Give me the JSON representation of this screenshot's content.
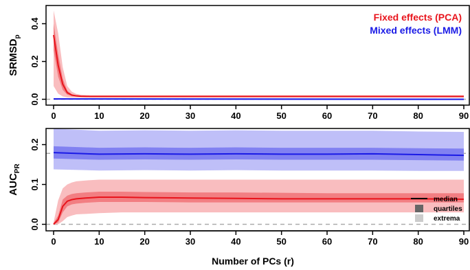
{
  "figure": {
    "xlabel": "Number of PCs (r)"
  },
  "chart_data": [
    {
      "type": "line",
      "ylabel_main": "SRMSD",
      "ylabel_sub": "p",
      "xlim": [
        0,
        90
      ],
      "ylim": [
        -0.02,
        0.52
      ],
      "x_ticks": [
        0,
        10,
        20,
        30,
        40,
        50,
        60,
        70,
        80,
        90
      ],
      "x_tick_labels": [
        "0",
        "10",
        "20",
        "30",
        "40",
        "50",
        "60",
        "70",
        "80",
        "90"
      ],
      "y_ticks": [
        0.0,
        0.2,
        0.4
      ],
      "y_tick_labels": [
        "0.0",
        "0.2",
        "0.4"
      ],
      "reference_line": 0.0,
      "legend_position": "top-right",
      "legend": [
        {
          "label": "Fixed effects (PCA)",
          "color": "#e8141c"
        },
        {
          "label": "Mixed effects (LMM)",
          "color": "#1a1ae6"
        }
      ],
      "series": [
        {
          "name": "Fixed effects (PCA)",
          "color": "#e8141c",
          "x": [
            0,
            1,
            2,
            3,
            4,
            5,
            6,
            8,
            10,
            20,
            30,
            40,
            50,
            60,
            70,
            80,
            90
          ],
          "median": [
            0.34,
            0.18,
            0.08,
            0.035,
            0.022,
            0.018,
            0.016,
            0.015,
            0.015,
            0.015,
            0.015,
            0.015,
            0.015,
            0.015,
            0.015,
            0.015,
            0.015
          ],
          "q1": [
            0.26,
            0.12,
            0.05,
            0.024,
            0.017,
            0.014,
            0.013,
            0.013,
            0.013,
            0.013,
            0.013,
            0.013,
            0.013,
            0.013,
            0.013,
            0.013,
            0.013
          ],
          "q3": [
            0.4,
            0.24,
            0.11,
            0.045,
            0.027,
            0.021,
            0.019,
            0.018,
            0.018,
            0.018,
            0.018,
            0.018,
            0.018,
            0.018,
            0.018,
            0.018,
            0.018
          ],
          "min": [
            0.07,
            0.03,
            0.015,
            0.01,
            0.009,
            0.009,
            0.009,
            0.009,
            0.009,
            0.009,
            0.009,
            0.009,
            0.009,
            0.009,
            0.009,
            0.009,
            0.009
          ],
          "max": [
            0.47,
            0.35,
            0.17,
            0.07,
            0.04,
            0.028,
            0.024,
            0.022,
            0.022,
            0.022,
            0.022,
            0.022,
            0.022,
            0.022,
            0.022,
            0.022,
            0.022
          ]
        },
        {
          "name": "Mixed effects (LMM)",
          "color": "#1a1ae6",
          "x": [
            0,
            90
          ],
          "median": [
            0.002,
            0.0
          ],
          "q1": [
            0.0,
            -0.002
          ],
          "q3": [
            0.004,
            0.002
          ],
          "min": [
            -0.002,
            -0.004
          ],
          "max": [
            0.006,
            0.004
          ]
        }
      ]
    },
    {
      "type": "line",
      "ylabel_main": "AUC",
      "ylabel_sub": "PR",
      "xlim": [
        0,
        90
      ],
      "ylim": [
        -0.005,
        0.245
      ],
      "x_ticks": [
        0,
        10,
        20,
        30,
        40,
        50,
        60,
        70,
        80,
        90
      ],
      "x_tick_labels": [
        "0",
        "10",
        "20",
        "30",
        "40",
        "50",
        "60",
        "70",
        "80",
        "90"
      ],
      "y_ticks": [
        0.0,
        0.1,
        0.2
      ],
      "y_tick_labels": [
        "0.0",
        "0.1",
        "0.2"
      ],
      "reference_lines": [
        0.0,
        0.178
      ],
      "legend_position": "bottom-right",
      "legend": [
        {
          "label": "median",
          "swatch": "line"
        },
        {
          "label": "quartiles",
          "swatch": "dark-box"
        },
        {
          "label": "extrema",
          "swatch": "light-box"
        }
      ],
      "series": [
        {
          "name": "Fixed effects (PCA)",
          "color": "#e8141c",
          "x": [
            0,
            1,
            2,
            3,
            4,
            5,
            7,
            10,
            15,
            20,
            30,
            40,
            50,
            60,
            70,
            80,
            90
          ],
          "median": [
            0.0,
            0.012,
            0.045,
            0.058,
            0.062,
            0.064,
            0.066,
            0.068,
            0.068,
            0.067,
            0.066,
            0.065,
            0.064,
            0.064,
            0.064,
            0.064,
            0.063
          ],
          "q1": [
            0.0,
            0.004,
            0.03,
            0.045,
            0.05,
            0.052,
            0.054,
            0.056,
            0.056,
            0.056,
            0.055,
            0.055,
            0.055,
            0.055,
            0.055,
            0.055,
            0.055
          ],
          "q3": [
            0.003,
            0.022,
            0.062,
            0.072,
            0.076,
            0.078,
            0.08,
            0.082,
            0.082,
            0.081,
            0.08,
            0.08,
            0.079,
            0.078,
            0.078,
            0.078,
            0.078
          ],
          "min": [
            0.0,
            0.0,
            0.008,
            0.018,
            0.022,
            0.025,
            0.026,
            0.028,
            0.03,
            0.03,
            0.03,
            0.03,
            0.03,
            0.03,
            0.03,
            0.03,
            0.03
          ],
          "max": [
            0.005,
            0.06,
            0.09,
            0.1,
            0.105,
            0.108,
            0.11,
            0.112,
            0.112,
            0.112,
            0.112,
            0.112,
            0.112,
            0.112,
            0.112,
            0.112,
            0.112
          ]
        },
        {
          "name": "Mixed effects (LMM)",
          "color": "#1a1ae6",
          "x": [
            0,
            10,
            20,
            30,
            40,
            50,
            60,
            70,
            80,
            90
          ],
          "median": [
            0.18,
            0.176,
            0.177,
            0.176,
            0.177,
            0.176,
            0.176,
            0.177,
            0.175,
            0.173
          ],
          "q1": [
            0.165,
            0.162,
            0.163,
            0.162,
            0.163,
            0.162,
            0.162,
            0.162,
            0.161,
            0.16
          ],
          "q3": [
            0.196,
            0.192,
            0.193,
            0.192,
            0.193,
            0.192,
            0.192,
            0.192,
            0.191,
            0.19
          ],
          "min": [
            0.138,
            0.135,
            0.136,
            0.135,
            0.136,
            0.135,
            0.135,
            0.135,
            0.134,
            0.134
          ],
          "max": [
            0.24,
            0.235,
            0.236,
            0.235,
            0.236,
            0.235,
            0.235,
            0.235,
            0.233,
            0.232
          ]
        }
      ]
    }
  ]
}
